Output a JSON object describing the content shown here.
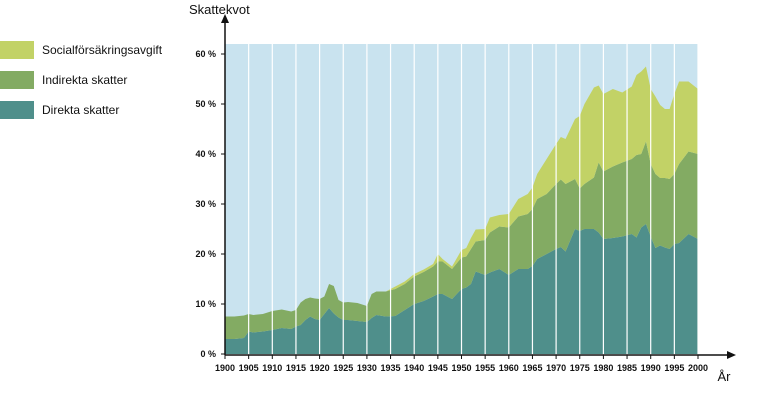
{
  "chart_data": {
    "type": "area",
    "stacked": true,
    "ylabel": "Skattekvot",
    "xlabel": "År",
    "xlim": [
      1900,
      2000
    ],
    "ylim": [
      0,
      62
    ],
    "x_ticks": [
      1900,
      1905,
      1910,
      1915,
      1920,
      1925,
      1930,
      1935,
      1940,
      1945,
      1950,
      1955,
      1960,
      1965,
      1970,
      1975,
      1980,
      1985,
      1990,
      1995,
      2000
    ],
    "y_ticks": [
      0,
      10,
      20,
      30,
      40,
      50,
      60
    ],
    "y_tick_labels": [
      "0 %",
      "10 %",
      "20 %",
      "30 %",
      "40 %",
      "50 %",
      "60 %"
    ],
    "x": [
      1900,
      1902,
      1904,
      1905,
      1906,
      1908,
      1910,
      1912,
      1914,
      1915,
      1916,
      1917,
      1918,
      1919,
      1920,
      1921,
      1922,
      1923,
      1924,
      1925,
      1926,
      1928,
      1930,
      1931,
      1932,
      1934,
      1936,
      1938,
      1940,
      1942,
      1944,
      1945,
      1946,
      1948,
      1950,
      1951,
      1952,
      1953,
      1955,
      1956,
      1958,
      1960,
      1962,
      1964,
      1965,
      1966,
      1968,
      1970,
      1971,
      1972,
      1974,
      1975,
      1976,
      1978,
      1979,
      1980,
      1982,
      1984,
      1986,
      1987,
      1988,
      1989,
      1990,
      1991,
      1992,
      1993,
      1994,
      1995,
      1996,
      1998,
      2000
    ],
    "background_color": "#c9e3ef",
    "series": [
      {
        "name": "Direkta skatter",
        "color": "#4f8f8b",
        "values": [
          3,
          3,
          3.2,
          4.5,
          4.3,
          4.5,
          4.8,
          5.2,
          5,
          5.5,
          5.8,
          6.8,
          7.5,
          7,
          6.8,
          8,
          9.2,
          8.1,
          7.3,
          6.8,
          6.8,
          6.6,
          6.4,
          7.2,
          7.8,
          7.5,
          7.6,
          8.8,
          10,
          10.6,
          11.5,
          12,
          12,
          11,
          13,
          13.3,
          14,
          16.5,
          15.8,
          16.3,
          17,
          15.8,
          17,
          17,
          17.6,
          19,
          20,
          21,
          21.4,
          20.5,
          25,
          24.6,
          25,
          25,
          24.3,
          23,
          23.2,
          23.5,
          24,
          23.3,
          25.3,
          26,
          23.5,
          21.2,
          21.7,
          21.3,
          21,
          22,
          22.2,
          24,
          23
        ]
      },
      {
        "name": "Indirekta skatter",
        "color": "#83ab63",
        "values": [
          4.5,
          4.5,
          4.5,
          3.5,
          3.5,
          3.5,
          3.8,
          3.7,
          3.5,
          3.3,
          4.5,
          4.2,
          3.8,
          4.1,
          4.2,
          3.5,
          4.8,
          5.5,
          3.5,
          3.5,
          3.6,
          3.6,
          3.2,
          4.8,
          4.7,
          5,
          5.4,
          5.2,
          5.5,
          5.8,
          6,
          6.5,
          6.5,
          6,
          6.3,
          6.2,
          7,
          6,
          7,
          8,
          8.5,
          9.5,
          10.5,
          11,
          11.4,
          12,
          12,
          13,
          13.5,
          13.5,
          10,
          8.5,
          9,
          10.3,
          14,
          13.5,
          14.3,
          14.8,
          15,
          16.5,
          14.7,
          16.5,
          14.5,
          14.8,
          13.5,
          13.9,
          14,
          14,
          15.8,
          16.5,
          17
        ]
      },
      {
        "name": "Socialförsäkringsavgift",
        "color": "#c2d266",
        "values": [
          0,
          0,
          0,
          0,
          0,
          0,
          0,
          0,
          0,
          0,
          0,
          0,
          0,
          0,
          0,
          0,
          0,
          0,
          0,
          0,
          0,
          0,
          0,
          0,
          0,
          0,
          0.5,
          0.5,
          0.5,
          0.5,
          0.5,
          1.5,
          0.5,
          0.5,
          1.5,
          1.7,
          2.2,
          2.4,
          2.2,
          3,
          2.3,
          2.7,
          3.5,
          4,
          4.3,
          5,
          7,
          8,
          8.5,
          9,
          12,
          14.5,
          16,
          18,
          15.4,
          15.5,
          15.5,
          14,
          14.5,
          16,
          16.5,
          15,
          15,
          15.5,
          14.6,
          13.8,
          14,
          16,
          16.5,
          14,
          13
        ]
      }
    ]
  }
}
